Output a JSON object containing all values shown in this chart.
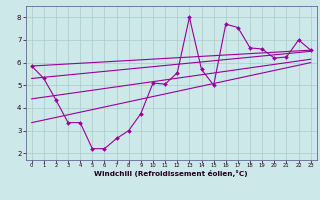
{
  "xlabel": "Windchill (Refroidissement éolien,°C)",
  "background_color": "#cce8e8",
  "grid_color": "#aacccc",
  "line_color": "#990099",
  "spine_color": "#666699",
  "xlim": [
    -0.5,
    23.5
  ],
  "ylim": [
    1.7,
    8.5
  ],
  "xticks": [
    0,
    1,
    2,
    3,
    4,
    5,
    6,
    7,
    8,
    9,
    10,
    11,
    12,
    13,
    14,
    15,
    16,
    17,
    18,
    19,
    20,
    21,
    22,
    23
  ],
  "yticks": [
    2,
    3,
    4,
    5,
    6,
    7,
    8
  ],
  "main_line_x": [
    0,
    1,
    2,
    3,
    4,
    5,
    6,
    7,
    8,
    9,
    10,
    11,
    12,
    13,
    14,
    15,
    16,
    17,
    18,
    19,
    20,
    21,
    22,
    23
  ],
  "main_line_y": [
    5.85,
    5.3,
    4.35,
    3.35,
    3.35,
    2.2,
    2.2,
    2.65,
    3.0,
    3.75,
    5.1,
    5.05,
    5.55,
    8.0,
    5.7,
    5.0,
    7.7,
    7.55,
    6.65,
    6.6,
    6.2,
    6.25,
    7.0,
    6.55
  ],
  "trend_line1": {
    "x": [
      0,
      23
    ],
    "y": [
      5.85,
      6.55
    ]
  },
  "trend_line2": {
    "x": [
      0,
      23
    ],
    "y": [
      5.3,
      6.5
    ]
  },
  "trend_line3": {
    "x": [
      0,
      23
    ],
    "y": [
      4.4,
      6.15
    ]
  },
  "trend_line4": {
    "x": [
      0,
      23
    ],
    "y": [
      3.35,
      6.0
    ]
  }
}
